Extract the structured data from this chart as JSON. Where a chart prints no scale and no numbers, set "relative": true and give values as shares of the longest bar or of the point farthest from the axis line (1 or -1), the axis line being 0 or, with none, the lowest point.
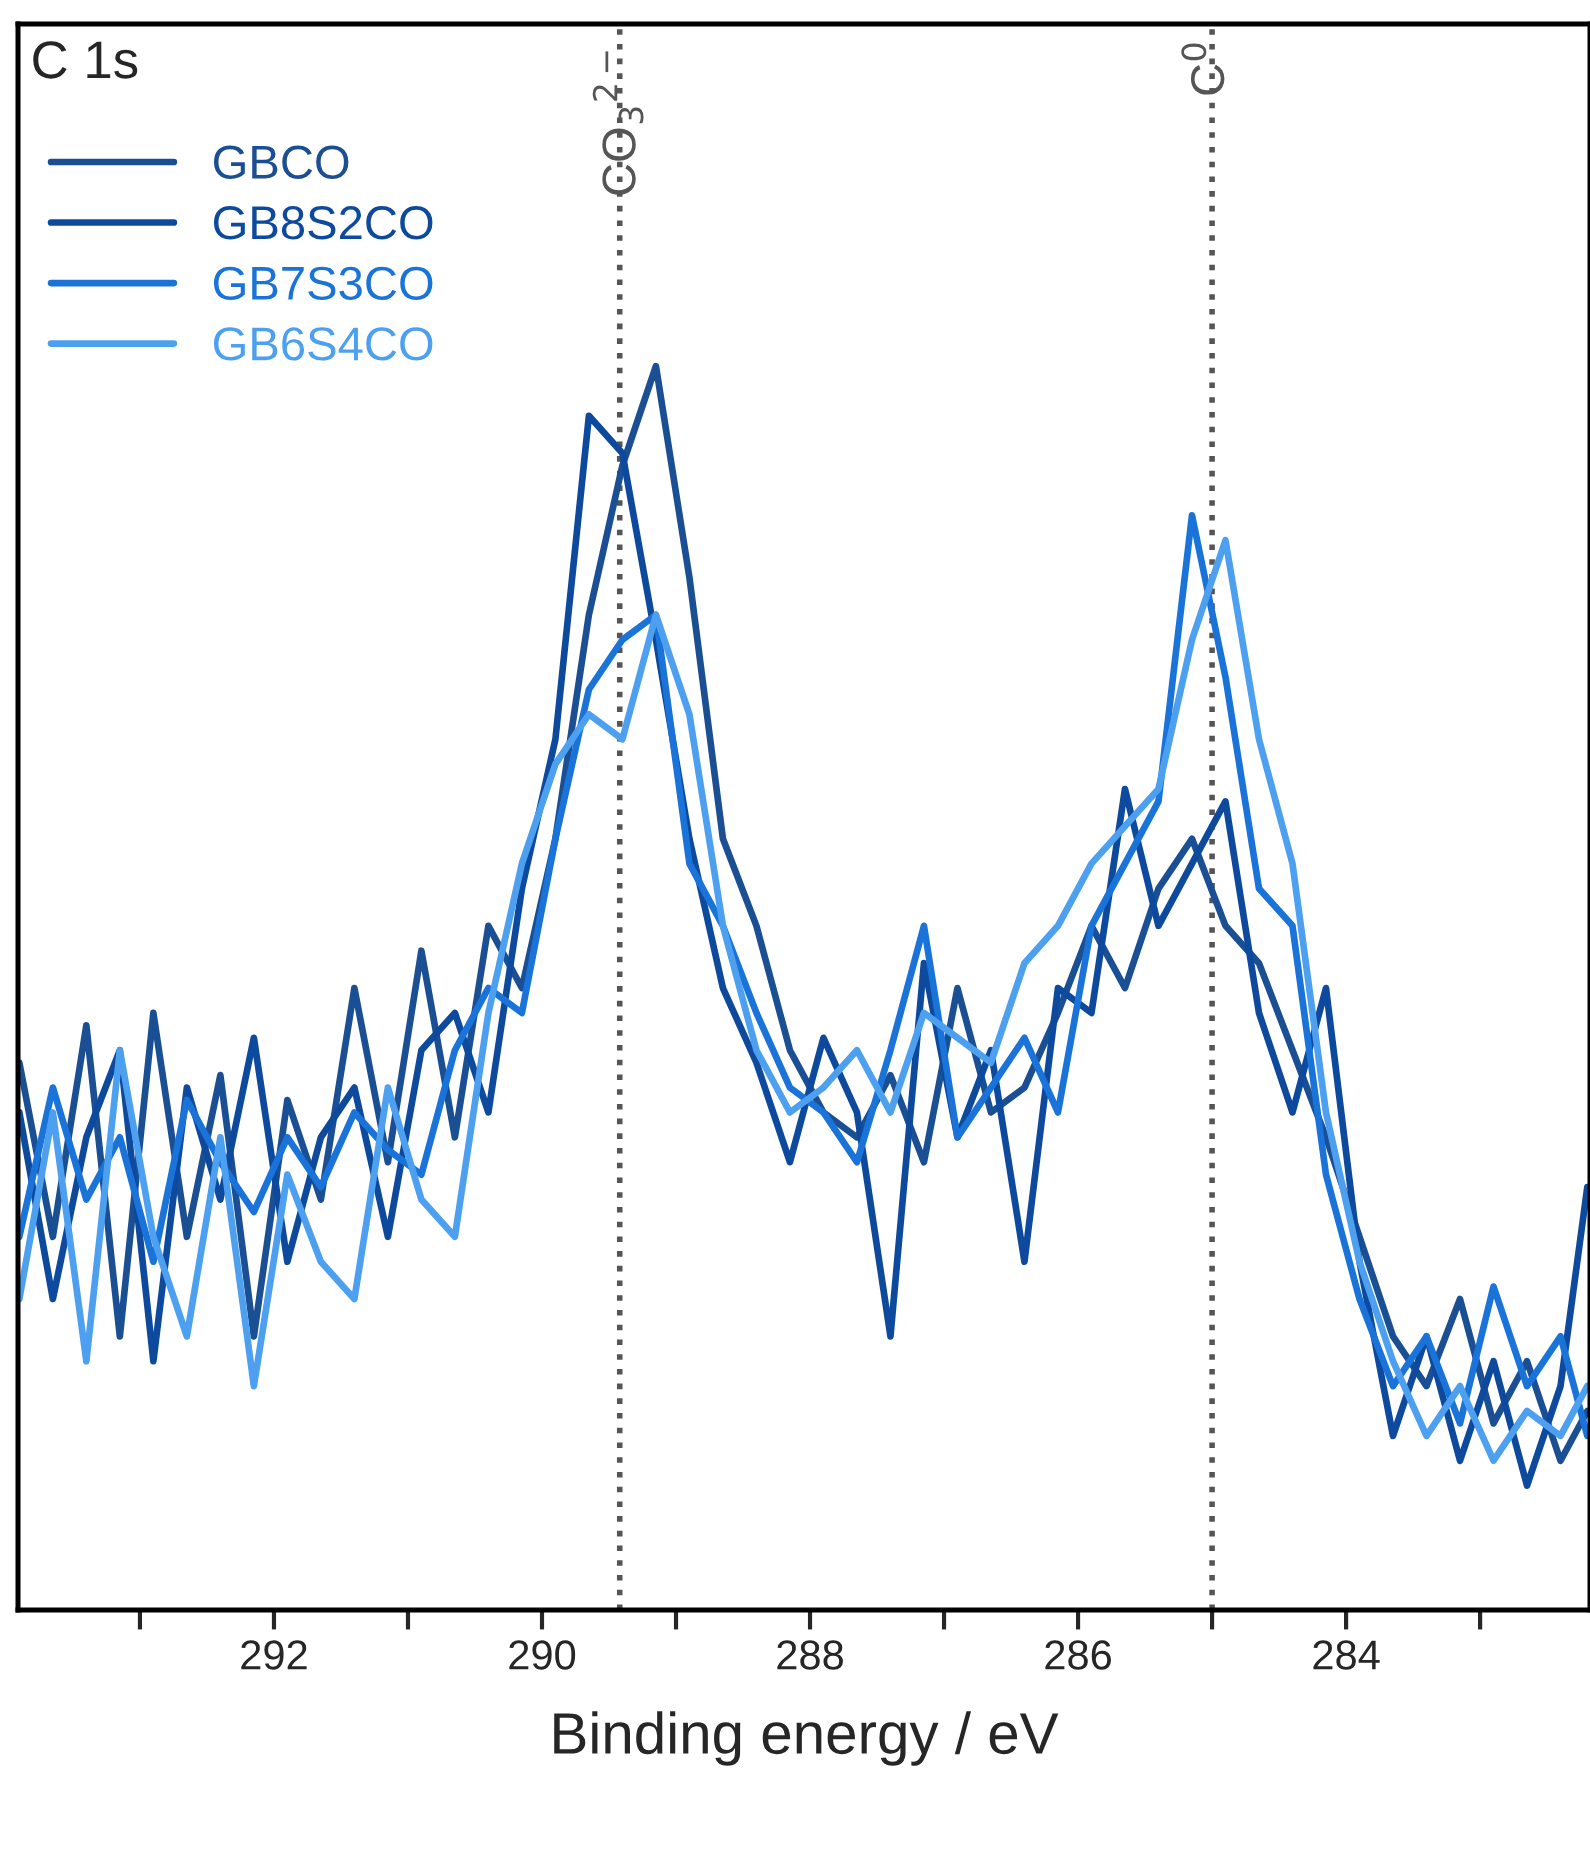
{
  "chart_data": {
    "type": "line",
    "title": "C 1s",
    "xlabel": "Binding energy / eV",
    "relative": true,
    "x": [
      293.9,
      293.65,
      293.4,
      293.15,
      292.9,
      292.65,
      292.4,
      292.15,
      291.9,
      291.65,
      291.4,
      291.15,
      290.9,
      290.65,
      290.4,
      290.15,
      289.9,
      289.65,
      289.4,
      289.15,
      288.9,
      288.65,
      288.4,
      288.15,
      287.9,
      287.65,
      287.4,
      287.15,
      286.9,
      286.65,
      286.4,
      286.15,
      285.9,
      285.65,
      285.4,
      285.15,
      284.9,
      284.65,
      284.4,
      284.15,
      283.9,
      283.65,
      283.4,
      283.15,
      282.9,
      282.65,
      282.4,
      282.2
    ],
    "series": [
      {
        "name": "GBCO",
        "color": "#1b4f93",
        "values": [
          0.44,
          0.3,
          0.47,
          0.22,
          0.48,
          0.3,
          0.43,
          0.22,
          0.41,
          0.33,
          0.5,
          0.36,
          0.53,
          0.38,
          0.55,
          0.5,
          0.62,
          0.8,
          0.92,
          1.0,
          0.83,
          0.62,
          0.55,
          0.45,
          0.4,
          0.38,
          0.43,
          0.36,
          0.5,
          0.4,
          0.42,
          0.48,
          0.55,
          0.5,
          0.58,
          0.62,
          0.55,
          0.52,
          0.45,
          0.38,
          0.3,
          0.22,
          0.18,
          0.25,
          0.15,
          0.2,
          0.12,
          0.16
        ]
      },
      {
        "name": "GB8S2CO",
        "color": "#0d4a9e",
        "values": [
          0.4,
          0.25,
          0.38,
          0.45,
          0.2,
          0.42,
          0.33,
          0.46,
          0.28,
          0.38,
          0.42,
          0.3,
          0.45,
          0.48,
          0.4,
          0.58,
          0.7,
          0.96,
          0.93,
          0.78,
          0.62,
          0.5,
          0.44,
          0.36,
          0.46,
          0.4,
          0.22,
          0.52,
          0.38,
          0.45,
          0.28,
          0.5,
          0.48,
          0.66,
          0.55,
          0.6,
          0.65,
          0.48,
          0.4,
          0.5,
          0.28,
          0.14,
          0.22,
          0.12,
          0.2,
          0.1,
          0.18,
          0.34
        ]
      },
      {
        "name": "GB7S3CO",
        "color": "#1a73d9",
        "values": [
          0.3,
          0.42,
          0.33,
          0.38,
          0.28,
          0.41,
          0.36,
          0.32,
          0.38,
          0.34,
          0.4,
          0.37,
          0.35,
          0.45,
          0.5,
          0.48,
          0.62,
          0.74,
          0.78,
          0.8,
          0.6,
          0.55,
          0.48,
          0.42,
          0.4,
          0.36,
          0.45,
          0.55,
          0.38,
          0.42,
          0.46,
          0.4,
          0.55,
          0.6,
          0.65,
          0.88,
          0.75,
          0.58,
          0.55,
          0.35,
          0.25,
          0.18,
          0.22,
          0.15,
          0.26,
          0.18,
          0.22,
          0.14
        ]
      },
      {
        "name": "GB6S4CO",
        "color": "#4da0f0",
        "values": [
          0.25,
          0.4,
          0.2,
          0.45,
          0.3,
          0.22,
          0.38,
          0.18,
          0.35,
          0.28,
          0.25,
          0.42,
          0.33,
          0.3,
          0.48,
          0.6,
          0.68,
          0.72,
          0.7,
          0.8,
          0.72,
          0.55,
          0.45,
          0.4,
          0.42,
          0.45,
          0.4,
          0.48,
          0.46,
          0.44,
          0.52,
          0.55,
          0.6,
          0.63,
          0.66,
          0.78,
          0.86,
          0.7,
          0.6,
          0.4,
          0.28,
          0.2,
          0.14,
          0.18,
          0.12,
          0.16,
          0.14,
          0.18
        ]
      }
    ],
    "xlim": [
      293.91,
      282.18
    ],
    "xticks": [
      {
        "value": 293,
        "label": null
      },
      292,
      {
        "value": 291,
        "label": null
      },
      290,
      {
        "value": 289,
        "label": null
      },
      288,
      {
        "value": 287,
        "label": null
      },
      286,
      {
        "value": 285,
        "label": null
      },
      284,
      {
        "value": 283,
        "label": null
      }
    ],
    "ref_lines": [
      {
        "axis": "x",
        "value": 289.42,
        "label": "CO$_{3}$$^{2−}$",
        "color": "#555555",
        "line_style": "dotted"
      },
      {
        "axis": "x",
        "value": 285.0,
        "label": "C$^{0}$",
        "color": "#555555",
        "line_style": "dotted"
      }
    ],
    "legend": "top left",
    "grid": false,
    "tick_labels": "x"
  }
}
